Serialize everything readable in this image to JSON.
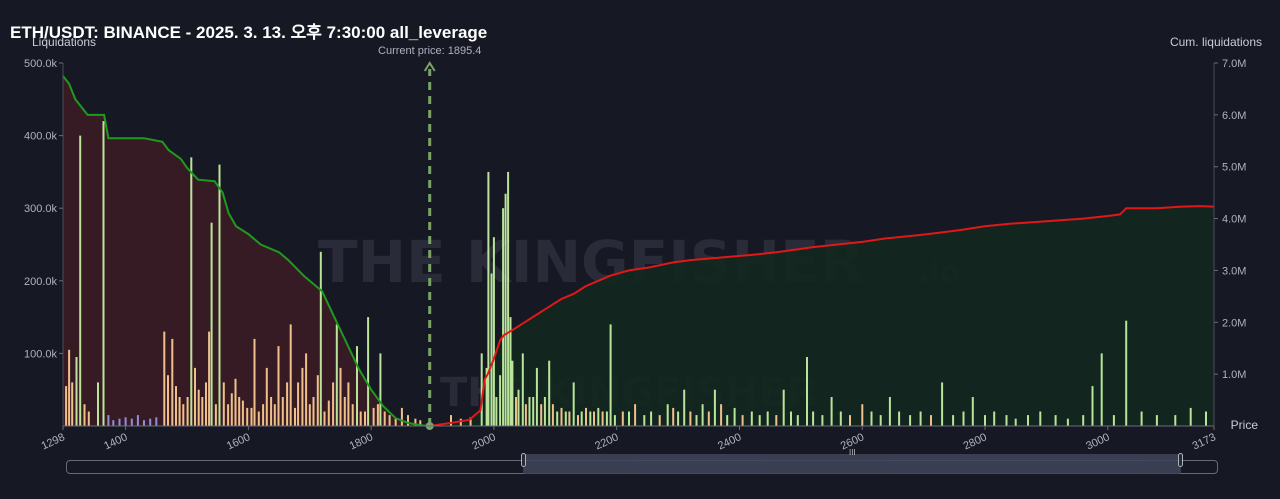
{
  "title": "ETH/USDT: BINANCE - 2025. 3. 13. 오후 7:30:00 all_leverage",
  "watermark_brand": "THE KINGFISHER",
  "watermark_suffix": ".io",
  "colors": {
    "background": "#161823",
    "long_cum_line": "#1f9a1f",
    "short_cum_line": "#e01818",
    "long_area": "#3a1c26",
    "short_area": "#12271f",
    "price_marker": "#7aa36a",
    "bar_green": "#b9e49a",
    "bar_orange": "#f0c08a",
    "bar_blue": "#8f90d6"
  },
  "chart_data": {
    "type": "bar",
    "title": "ETH/USDT: BINANCE - 2025. 3. 13. 오후 7:30:00 all_leverage",
    "xlabel": "Price",
    "ylabel_left": "Liquidations",
    "ylabel_right": "Cum. liquidations",
    "xlim": [
      1298,
      3173
    ],
    "ylim_left": [
      0,
      500000
    ],
    "ylim_right": [
      0,
      7000000
    ],
    "x_ticks": [
      "1298",
      "1400",
      "1600",
      "1800",
      "2000",
      "2200",
      "2400",
      "2600",
      "2800",
      "3000",
      "3173"
    ],
    "x_tick_values": [
      1298,
      1400,
      1600,
      1800,
      2000,
      2200,
      2400,
      2600,
      2800,
      3000,
      3173
    ],
    "y_left_ticks": [
      "500.0k",
      "400.0k",
      "300.0k",
      "200.0k",
      "100.0k"
    ],
    "y_left_tick_values": [
      500000,
      400000,
      300000,
      200000,
      100000
    ],
    "y_right_ticks": [
      "7.0M",
      "6.0M",
      "5.0M",
      "4.0M",
      "3.0M",
      "2.0M",
      "1.0M"
    ],
    "y_right_tick_values": [
      7000000,
      6000000,
      5000000,
      4000000,
      3000000,
      2000000,
      1000000
    ],
    "current_price": 1895.4,
    "current_price_label": "Current price: 1895.4",
    "grid": false,
    "bars": [
      [
        1303,
        55000,
        "o"
      ],
      [
        1308,
        105000,
        "o"
      ],
      [
        1313,
        60000,
        "o"
      ],
      [
        1320,
        95000,
        "g"
      ],
      [
        1326,
        400000,
        "g"
      ],
      [
        1333,
        30000,
        "o"
      ],
      [
        1340,
        20000,
        "o"
      ],
      [
        1355,
        60000,
        "g"
      ],
      [
        1364,
        420000,
        "g"
      ],
      [
        1372,
        15000,
        "b"
      ],
      [
        1380,
        8000,
        "b"
      ],
      [
        1390,
        10000,
        "b"
      ],
      [
        1400,
        12000,
        "b"
      ],
      [
        1410,
        10000,
        "b"
      ],
      [
        1420,
        15000,
        "b"
      ],
      [
        1430,
        8000,
        "b"
      ],
      [
        1440,
        10000,
        "b"
      ],
      [
        1450,
        12000,
        "b"
      ],
      [
        1463,
        130000,
        "o"
      ],
      [
        1469,
        70000,
        "o"
      ],
      [
        1476,
        120000,
        "o"
      ],
      [
        1482,
        55000,
        "o"
      ],
      [
        1488,
        40000,
        "o"
      ],
      [
        1494,
        30000,
        "o"
      ],
      [
        1501,
        40000,
        "o"
      ],
      [
        1507,
        370000,
        "g"
      ],
      [
        1513,
        80000,
        "o"
      ],
      [
        1519,
        50000,
        "o"
      ],
      [
        1525,
        40000,
        "o"
      ],
      [
        1531,
        60000,
        "o"
      ],
      [
        1536,
        130000,
        "o"
      ],
      [
        1540,
        280000,
        "g"
      ],
      [
        1547,
        30000,
        "o"
      ],
      [
        1553,
        360000,
        "g"
      ],
      [
        1560,
        60000,
        "o"
      ],
      [
        1567,
        30000,
        "o"
      ],
      [
        1573,
        45000,
        "o"
      ],
      [
        1579,
        65000,
        "o"
      ],
      [
        1585,
        40000,
        "o"
      ],
      [
        1591,
        35000,
        "o"
      ],
      [
        1598,
        25000,
        "o"
      ],
      [
        1605,
        25000,
        "o"
      ],
      [
        1610,
        120000,
        "o"
      ],
      [
        1617,
        20000,
        "o"
      ],
      [
        1624,
        30000,
        "o"
      ],
      [
        1630,
        80000,
        "o"
      ],
      [
        1637,
        40000,
        "o"
      ],
      [
        1643,
        30000,
        "o"
      ],
      [
        1649,
        110000,
        "o"
      ],
      [
        1656,
        40000,
        "o"
      ],
      [
        1663,
        60000,
        "o"
      ],
      [
        1669,
        140000,
        "o"
      ],
      [
        1676,
        25000,
        "o"
      ],
      [
        1681,
        60000,
        "o"
      ],
      [
        1688,
        80000,
        "o"
      ],
      [
        1694,
        100000,
        "o"
      ],
      [
        1700,
        30000,
        "o"
      ],
      [
        1706,
        40000,
        "o"
      ],
      [
        1713,
        70000,
        "o"
      ],
      [
        1718,
        240000,
        "g"
      ],
      [
        1724,
        20000,
        "o"
      ],
      [
        1731,
        35000,
        "o"
      ],
      [
        1738,
        60000,
        "o"
      ],
      [
        1744,
        140000,
        "g"
      ],
      [
        1750,
        80000,
        "o"
      ],
      [
        1757,
        40000,
        "o"
      ],
      [
        1763,
        60000,
        "o"
      ],
      [
        1770,
        30000,
        "o"
      ],
      [
        1777,
        110000,
        "g"
      ],
      [
        1783,
        20000,
        "o"
      ],
      [
        1790,
        20000,
        "o"
      ],
      [
        1795,
        150000,
        "g"
      ],
      [
        1804,
        25000,
        "o"
      ],
      [
        1811,
        30000,
        "o"
      ],
      [
        1815,
        100000,
        "g"
      ],
      [
        1822,
        20000,
        "o"
      ],
      [
        1830,
        15000,
        "o"
      ],
      [
        1840,
        10000,
        "o"
      ],
      [
        1850,
        25000,
        "o"
      ],
      [
        1860,
        15000,
        "o"
      ],
      [
        1872,
        10000,
        "o"
      ],
      [
        1880,
        8000,
        "o"
      ],
      [
        1930,
        15000,
        "o"
      ],
      [
        1946,
        10000,
        "o"
      ],
      [
        1962,
        12000,
        "o"
      ],
      [
        1980,
        100000,
        "g"
      ],
      [
        1988,
        80000,
        "g"
      ],
      [
        1991,
        350000,
        "g"
      ],
      [
        1996,
        210000,
        "g"
      ],
      [
        2000,
        260000,
        "g"
      ],
      [
        2004,
        40000,
        "g"
      ],
      [
        2010,
        70000,
        "g"
      ],
      [
        2015,
        300000,
        "g"
      ],
      [
        2019,
        320000,
        "g"
      ],
      [
        2023,
        350000,
        "g"
      ],
      [
        2027,
        150000,
        "g"
      ],
      [
        2030,
        90000,
        "g"
      ],
      [
        2036,
        40000,
        "o"
      ],
      [
        2040,
        50000,
        "g"
      ],
      [
        2047,
        100000,
        "g"
      ],
      [
        2052,
        30000,
        "o"
      ],
      [
        2058,
        40000,
        "g"
      ],
      [
        2064,
        40000,
        "g"
      ],
      [
        2070,
        80000,
        "g"
      ],
      [
        2077,
        30000,
        "o"
      ],
      [
        2083,
        40000,
        "g"
      ],
      [
        2090,
        90000,
        "g"
      ],
      [
        2096,
        30000,
        "o"
      ],
      [
        2103,
        20000,
        "g"
      ],
      [
        2110,
        25000,
        "o"
      ],
      [
        2117,
        20000,
        "g"
      ],
      [
        2123,
        20000,
        "o"
      ],
      [
        2130,
        60000,
        "g"
      ],
      [
        2137,
        15000,
        "o"
      ],
      [
        2143,
        20000,
        "g"
      ],
      [
        2150,
        25000,
        "o"
      ],
      [
        2157,
        20000,
        "g"
      ],
      [
        2163,
        20000,
        "o"
      ],
      [
        2170,
        25000,
        "g"
      ],
      [
        2177,
        20000,
        "o"
      ],
      [
        2184,
        20000,
        "g"
      ],
      [
        2190,
        140000,
        "g"
      ],
      [
        2197,
        15000,
        "g"
      ],
      [
        2210,
        20000,
        "o"
      ],
      [
        2220,
        20000,
        "g"
      ],
      [
        2230,
        30000,
        "o"
      ],
      [
        2245,
        15000,
        "g"
      ],
      [
        2256,
        20000,
        "g"
      ],
      [
        2270,
        15000,
        "o"
      ],
      [
        2283,
        30000,
        "g"
      ],
      [
        2292,
        25000,
        "o"
      ],
      [
        2300,
        20000,
        "g"
      ],
      [
        2310,
        50000,
        "g"
      ],
      [
        2320,
        20000,
        "o"
      ],
      [
        2330,
        15000,
        "g"
      ],
      [
        2340,
        30000,
        "g"
      ],
      [
        2350,
        20000,
        "o"
      ],
      [
        2360,
        50000,
        "g"
      ],
      [
        2370,
        30000,
        "o"
      ],
      [
        2380,
        15000,
        "g"
      ],
      [
        2392,
        25000,
        "g"
      ],
      [
        2405,
        15000,
        "o"
      ],
      [
        2420,
        20000,
        "g"
      ],
      [
        2433,
        15000,
        "g"
      ],
      [
        2446,
        20000,
        "g"
      ],
      [
        2460,
        15000,
        "o"
      ],
      [
        2472,
        50000,
        "g"
      ],
      [
        2484,
        20000,
        "g"
      ],
      [
        2495,
        15000,
        "g"
      ],
      [
        2510,
        95000,
        "g"
      ],
      [
        2520,
        20000,
        "g"
      ],
      [
        2535,
        15000,
        "g"
      ],
      [
        2550,
        40000,
        "g"
      ],
      [
        2565,
        20000,
        "g"
      ],
      [
        2580,
        15000,
        "o"
      ],
      [
        2600,
        30000,
        "o"
      ],
      [
        2615,
        20000,
        "g"
      ],
      [
        2630,
        15000,
        "g"
      ],
      [
        2645,
        40000,
        "g"
      ],
      [
        2660,
        20000,
        "g"
      ],
      [
        2678,
        15000,
        "g"
      ],
      [
        2695,
        20000,
        "g"
      ],
      [
        2712,
        15000,
        "o"
      ],
      [
        2730,
        60000,
        "g"
      ],
      [
        2748,
        15000,
        "g"
      ],
      [
        2765,
        20000,
        "g"
      ],
      [
        2780,
        40000,
        "g"
      ],
      [
        2800,
        15000,
        "g"
      ],
      [
        2815,
        20000,
        "g"
      ],
      [
        2835,
        15000,
        "g"
      ],
      [
        2850,
        10000,
        "g"
      ],
      [
        2870,
        15000,
        "g"
      ],
      [
        2890,
        20000,
        "g"
      ],
      [
        2915,
        15000,
        "g"
      ],
      [
        2935,
        10000,
        "g"
      ],
      [
        2960,
        15000,
        "g"
      ],
      [
        2975,
        55000,
        "g"
      ],
      [
        2990,
        100000,
        "g"
      ],
      [
        3010,
        15000,
        "g"
      ],
      [
        3030,
        145000,
        "g"
      ],
      [
        3055,
        20000,
        "g"
      ],
      [
        3080,
        15000,
        "g"
      ],
      [
        3110,
        15000,
        "g"
      ],
      [
        3135,
        25000,
        "g"
      ],
      [
        3160,
        20000,
        "g"
      ]
    ],
    "long_cumulative": [
      [
        1298,
        6750000
      ],
      [
        1308,
        6600000
      ],
      [
        1318,
        6300000
      ],
      [
        1338,
        6000000
      ],
      [
        1365,
        6000000
      ],
      [
        1372,
        5550000
      ],
      [
        1430,
        5550000
      ],
      [
        1460,
        5480000
      ],
      [
        1470,
        5320000
      ],
      [
        1490,
        5150000
      ],
      [
        1500,
        4980000
      ],
      [
        1518,
        4750000
      ],
      [
        1545,
        4720000
      ],
      [
        1558,
        4500000
      ],
      [
        1568,
        4100000
      ],
      [
        1580,
        3850000
      ],
      [
        1600,
        3700000
      ],
      [
        1620,
        3500000
      ],
      [
        1650,
        3350000
      ],
      [
        1665,
        3200000
      ],
      [
        1690,
        2900000
      ],
      [
        1720,
        2600000
      ],
      [
        1740,
        2100000
      ],
      [
        1760,
        1600000
      ],
      [
        1780,
        1100000
      ],
      [
        1800,
        700000
      ],
      [
        1820,
        380000
      ],
      [
        1840,
        150000
      ],
      [
        1860,
        60000
      ],
      [
        1880,
        15000
      ],
      [
        1895.4,
        0
      ]
    ],
    "short_cumulative": [
      [
        1895.4,
        0
      ],
      [
        1930,
        60000
      ],
      [
        1960,
        120000
      ],
      [
        1978,
        300000
      ],
      [
        1985,
        900000
      ],
      [
        1990,
        1000000
      ],
      [
        2000,
        1300000
      ],
      [
        2010,
        1650000
      ],
      [
        2016,
        1750000
      ],
      [
        2030,
        1850000
      ],
      [
        2050,
        2000000
      ],
      [
        2070,
        2150000
      ],
      [
        2090,
        2300000
      ],
      [
        2110,
        2450000
      ],
      [
        2130,
        2550000
      ],
      [
        2150,
        2700000
      ],
      [
        2170,
        2800000
      ],
      [
        2190,
        2900000
      ],
      [
        2220,
        3000000
      ],
      [
        2250,
        3050000
      ],
      [
        2290,
        3150000
      ],
      [
        2320,
        3200000
      ],
      [
        2370,
        3250000
      ],
      [
        2420,
        3300000
      ],
      [
        2460,
        3350000
      ],
      [
        2490,
        3400000
      ],
      [
        2520,
        3450000
      ],
      [
        2560,
        3500000
      ],
      [
        2600,
        3550000
      ],
      [
        2640,
        3620000
      ],
      [
        2690,
        3680000
      ],
      [
        2720,
        3720000
      ],
      [
        2760,
        3780000
      ],
      [
        2800,
        3850000
      ],
      [
        2840,
        3900000
      ],
      [
        2900,
        3950000
      ],
      [
        2960,
        4000000
      ],
      [
        3000,
        4050000
      ],
      [
        3020,
        4080000
      ],
      [
        3030,
        4200000
      ],
      [
        3080,
        4200000
      ],
      [
        3120,
        4230000
      ],
      [
        3150,
        4240000
      ],
      [
        3173,
        4230000
      ]
    ]
  },
  "scrollbar": {
    "grip_label": "III"
  }
}
